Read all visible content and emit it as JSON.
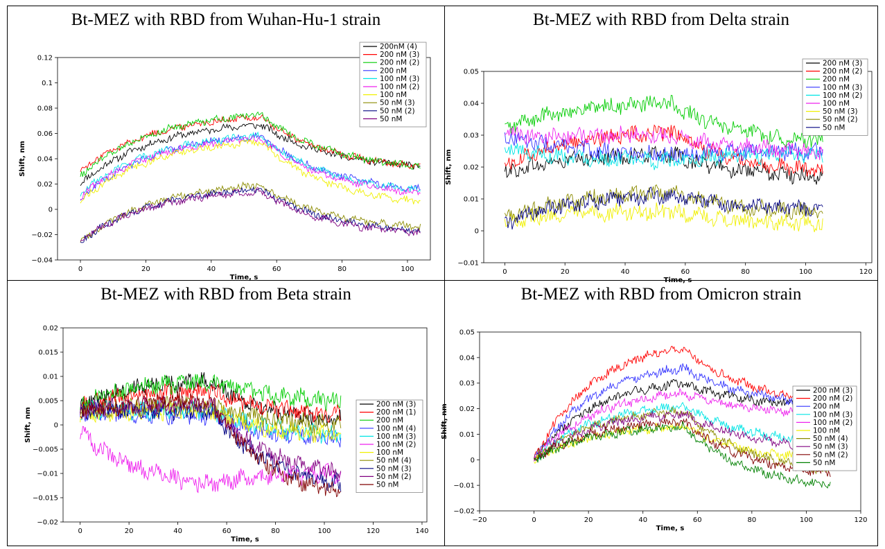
{
  "chart_data": [
    {
      "type": "line",
      "title": "Bt-MEZ with RBD from Wuhan-Hu-1 strain",
      "xlabel": "Time, s",
      "ylabel": "Shift, nm",
      "xlim": [
        -7,
        107
      ],
      "ylim": [
        -0.04,
        0.12
      ],
      "xticks": [
        0,
        20,
        40,
        60,
        80,
        100
      ],
      "yticks": [
        -0.04,
        -0.02,
        0,
        0.02,
        0.04,
        0.06,
        0.08,
        0.1,
        0.12
      ],
      "ytick_labels": [
        "−0.04",
        "−0.02",
        "0",
        "0.02",
        "0.04",
        "0.06",
        "0.08",
        "0.1",
        "0.12"
      ],
      "legend": "top-right",
      "x_end": 104,
      "dissociation_start": 55,
      "noise": 0.0025,
      "series": [
        {
          "name": "200nM (4)",
          "color": "#000000",
          "start": 0.02,
          "peak": 0.067,
          "end": 0.034
        },
        {
          "name": "200 nM (3)",
          "color": "#ff0000",
          "start": 0.03,
          "peak": 0.073,
          "end": 0.034
        },
        {
          "name": "200 nM (2)",
          "color": "#00cc00",
          "start": 0.026,
          "peak": 0.075,
          "end": 0.034
        },
        {
          "name": "200 nM",
          "color": "#3333ff",
          "start": 0.008,
          "peak": 0.058,
          "end": 0.016
        },
        {
          "name": "100 nM (3)",
          "color": "#00e5e5",
          "start": 0.012,
          "peak": 0.058,
          "end": 0.015
        },
        {
          "name": "100 nM (2)",
          "color": "#ee22ee",
          "start": 0.01,
          "peak": 0.056,
          "end": 0.013
        },
        {
          "name": "100 nM",
          "color": "#f0f000",
          "start": 0.006,
          "peak": 0.053,
          "end": 0.006
        },
        {
          "name": "50 nM (3)",
          "color": "#8b8b00",
          "start": -0.026,
          "peak": 0.019,
          "end": -0.014
        },
        {
          "name": "50 nM (2)",
          "color": "#000080",
          "start": -0.026,
          "peak": 0.016,
          "end": -0.017
        },
        {
          "name": "50 nM",
          "color": "#800080",
          "start": -0.025,
          "peak": 0.014,
          "end": -0.019
        }
      ]
    },
    {
      "type": "line",
      "title": "Bt-MEZ with RBD from Delta strain",
      "xlabel": "Time, s",
      "ylabel": "Shift, nm",
      "xlim": [
        -7,
        122
      ],
      "ylim": [
        -0.01,
        0.05
      ],
      "xticks": [
        0,
        20,
        40,
        60,
        80,
        100,
        120
      ],
      "yticks": [
        -0.01,
        0,
        0.01,
        0.02,
        0.03,
        0.04,
        0.05
      ],
      "ytick_labels": [
        "−0.01",
        "0",
        "0.01",
        "0.02",
        "0.03",
        "0.04",
        "0.05"
      ],
      "legend": "top-right",
      "x_end": 106,
      "dissociation_start": 55,
      "noise": 0.0022,
      "series": [
        {
          "name": "200 nM (3)",
          "color": "#000000",
          "start": 0.018,
          "peak": 0.024,
          "end": 0.017
        },
        {
          "name": "200 nM (2)",
          "color": "#ff0000",
          "start": 0.02,
          "peak": 0.031,
          "end": 0.019
        },
        {
          "name": "200 nM",
          "color": "#00cc00",
          "start": 0.032,
          "peak": 0.04,
          "end": 0.028
        },
        {
          "name": "100 nM (3)",
          "color": "#3333ff",
          "start": 0.03,
          "peak": 0.024,
          "end": 0.025
        },
        {
          "name": "100 nM (2)",
          "color": "#00e5e5",
          "start": 0.026,
          "peak": 0.022,
          "end": 0.024
        },
        {
          "name": "100 nM",
          "color": "#ee22ee",
          "start": 0.03,
          "peak": 0.03,
          "end": 0.025
        },
        {
          "name": "50 nM (3)",
          "color": "#f0f000",
          "start": 0.003,
          "peak": 0.006,
          "end": 0.002
        },
        {
          "name": "50 nM (2)",
          "color": "#8b8b00",
          "start": 0.004,
          "peak": 0.012,
          "end": 0.006
        },
        {
          "name": "50 nM",
          "color": "#000080",
          "start": 0.002,
          "peak": 0.011,
          "end": 0.007
        }
      ]
    },
    {
      "type": "line",
      "title": "Bt-MEZ with RBD from Beta strain",
      "xlabel": "Time, s",
      "ylabel": "Shift, nm",
      "xlim": [
        -7,
        142
      ],
      "ylim": [
        -0.02,
        0.02
      ],
      "xticks": [
        0,
        20,
        40,
        60,
        80,
        100,
        120,
        140
      ],
      "yticks": [
        -0.02,
        -0.015,
        -0.01,
        -0.005,
        0,
        0.005,
        0.01,
        0.015,
        0.02
      ],
      "ytick_labels": [
        "−0.02",
        "−0.015",
        "−0.01",
        "−0.005",
        "0",
        "0.005",
        "0.01",
        "0.015",
        "0.02"
      ],
      "legend": "right",
      "x_end": 107,
      "dissociation_start": 54,
      "noise": 0.0016,
      "series": [
        {
          "name": "200 nM (3)",
          "color": "#000000",
          "start": 0.004,
          "peak": 0.009,
          "end": 0.001
        },
        {
          "name": "200 nM (1)",
          "color": "#ff0000",
          "start": 0.004,
          "peak": 0.007,
          "end": 0.002
        },
        {
          "name": "200 nM",
          "color": "#00cc00",
          "start": 0.004,
          "peak": 0.009,
          "end": 0.005
        },
        {
          "name": "100 nM (4)",
          "color": "#3333ff",
          "start": 0.003,
          "peak": 0.002,
          "end": -0.003
        },
        {
          "name": "100 nM (3)",
          "color": "#00e5e5",
          "start": 0.003,
          "peak": 0.003,
          "end": -0.002
        },
        {
          "name": "100 nM (2)",
          "color": "#ee22ee",
          "start": -0.001,
          "peak": -0.012,
          "end": -0.01
        },
        {
          "name": "100 nM",
          "color": "#f0f000",
          "start": 0.002,
          "peak": 0.003,
          "end": -0.002
        },
        {
          "name": "50 nM (4)",
          "color": "#8b8b00",
          "start": 0.003,
          "peak": 0.004,
          "end": 0.0
        },
        {
          "name": "50 nM (3)",
          "color": "#000080",
          "start": 0.003,
          "peak": 0.003,
          "end": -0.012
        },
        {
          "name": "50 nM (2)",
          "color": "#800080",
          "start": 0.003,
          "peak": 0.004,
          "end": -0.01
        },
        {
          "name": "50 nM",
          "color": "#800000",
          "start": 0.003,
          "peak": 0.005,
          "end": -0.014
        }
      ]
    },
    {
      "type": "line",
      "title": "Bt-MEZ with RBD from Omicron strain",
      "xlabel": "Time, s",
      "ylabel": "Shift, nm",
      "xlim": [
        -20,
        120
      ],
      "ylim": [
        -0.02,
        0.05
      ],
      "xticks": [
        -20,
        0,
        20,
        40,
        60,
        80,
        100,
        120
      ],
      "xtick_labels": [
        "−20",
        "0",
        "20",
        "40",
        "60",
        "80",
        "100",
        "120"
      ],
      "yticks": [
        -0.02,
        -0.01,
        0,
        0.01,
        0.02,
        0.03,
        0.04,
        0.05
      ],
      "ytick_labels": [
        "−0.02",
        "−0.01",
        "0",
        "0.01",
        "0.02",
        "0.03",
        "0.04",
        "0.05"
      ],
      "legend": "right",
      "x_end": 109,
      "dissociation_start": 55,
      "noise": 0.0016,
      "series": [
        {
          "name": "200 nM (3)",
          "color": "#000000",
          "start": 0.0,
          "peak": 0.03,
          "end": 0.021
        },
        {
          "name": "200 nM (2)",
          "color": "#ff0000",
          "start": 0.0,
          "peak": 0.044,
          "end": 0.023
        },
        {
          "name": "200 nM",
          "color": "#3333ff",
          "start": 0.0,
          "peak": 0.036,
          "end": 0.022
        },
        {
          "name": "100 nM (3)",
          "color": "#00e5e5",
          "start": 0.0,
          "peak": 0.021,
          "end": 0.007
        },
        {
          "name": "100 nM (2)",
          "color": "#ee22ee",
          "start": 0.0,
          "peak": 0.026,
          "end": 0.018
        },
        {
          "name": "100 nM",
          "color": "#f0f000",
          "start": 0.0,
          "peak": 0.013,
          "end": 0.0
        },
        {
          "name": "50 nM (4)",
          "color": "#8b8b00",
          "start": 0.0,
          "peak": 0.019,
          "end": -0.004
        },
        {
          "name": "50 nM (3)",
          "color": "#800080",
          "start": 0.0,
          "peak": 0.018,
          "end": 0.005
        },
        {
          "name": "50 nM (2)",
          "color": "#800000",
          "start": 0.0,
          "peak": 0.015,
          "end": -0.005
        },
        {
          "name": "50 nM",
          "color": "#008000",
          "start": 0.0,
          "peak": 0.013,
          "end": -0.01
        }
      ]
    }
  ]
}
